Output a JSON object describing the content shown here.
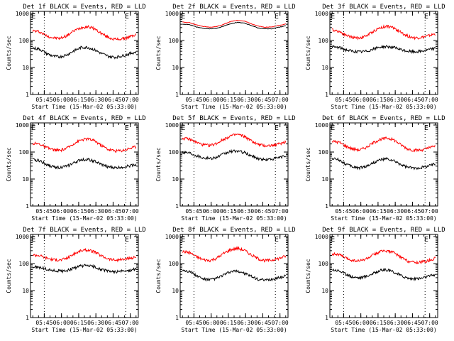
{
  "colors": {
    "events": "#000000",
    "lld": "#ff0000",
    "background": "#ffffff",
    "axes": "#000000"
  },
  "chart_data": [
    {
      "type": "line",
      "title": "Det 1f BLACK = Events, RED = LLD",
      "xlabel": "Start Time (15-Mar-02 05:33:00)",
      "ylabel": "Counts/sec",
      "xtick_labels": [
        "05:45",
        "06:00",
        "06:15",
        "06:30",
        "06:45",
        "07:00"
      ],
      "xtick_minutes": [
        12,
        27,
        42,
        57,
        72,
        87
      ],
      "xlim_minutes": [
        0,
        94
      ],
      "ytick_labels": [
        "1",
        "10",
        "100",
        "1000"
      ],
      "y_scale": "log",
      "ylim": [
        1,
        1200
      ],
      "markers": [
        {
          "label": "E",
          "x_minute": 2.6
        },
        {
          "label": "E",
          "x_minute": 84
        }
      ],
      "dotted_lines_minutes": [
        12,
        83
      ],
      "series": [
        {
          "color": "#ff0000",
          "x_minutes": [
            2,
            8,
            14,
            20,
            26,
            32,
            38,
            44,
            50,
            56,
            62,
            68,
            74,
            80,
            86,
            92
          ],
          "values": [
            230,
            210,
            150,
            125,
            120,
            155,
            230,
            300,
            330,
            270,
            180,
            130,
            110,
            115,
            135,
            165
          ]
        },
        {
          "color": "#000000",
          "x_minutes": [
            2,
            8,
            14,
            20,
            26,
            32,
            38,
            44,
            50,
            56,
            62,
            68,
            74,
            80,
            86,
            92
          ],
          "values": [
            52,
            48,
            33,
            26,
            25,
            30,
            42,
            55,
            56,
            45,
            33,
            26,
            24,
            27,
            32,
            38
          ]
        }
      ]
    },
    {
      "type": "line",
      "title": "Det 2f BLACK = Events, RED = LLD",
      "xlabel": "Start Time (15-Mar-02 05:33:00)",
      "ylabel": "Counts/sec",
      "xtick_labels": [
        "05:45",
        "06:00",
        "06:15",
        "06:30",
        "06:45",
        "07:00"
      ],
      "xtick_minutes": [
        12,
        27,
        42,
        57,
        72,
        87
      ],
      "xlim_minutes": [
        0,
        94
      ],
      "ytick_labels": [
        "1",
        "10",
        "100",
        "1000"
      ],
      "y_scale": "log",
      "ylim": [
        1,
        1200
      ],
      "markers": [
        {
          "label": "E",
          "x_minute": 2.6
        },
        {
          "label": "E",
          "x_minute": 84
        }
      ],
      "dotted_lines_minutes": [
        12,
        83
      ],
      "series": [
        {
          "color": "#ff0000",
          "x_minutes": [
            2,
            8,
            14,
            20,
            26,
            32,
            38,
            44,
            50,
            56,
            62,
            68,
            74,
            80,
            86,
            92
          ],
          "values": [
            480,
            460,
            380,
            330,
            310,
            330,
            400,
            500,
            560,
            520,
            420,
            340,
            310,
            320,
            360,
            410
          ]
        },
        {
          "color": "#000000",
          "x_minutes": [
            2,
            8,
            14,
            20,
            26,
            32,
            38,
            44,
            50,
            56,
            62,
            68,
            74,
            80,
            86,
            92
          ],
          "values": [
            400,
            390,
            320,
            280,
            270,
            285,
            340,
            420,
            470,
            440,
            360,
            290,
            270,
            275,
            310,
            350
          ]
        }
      ]
    },
    {
      "type": "line",
      "title": "Det 3f BLACK = Events, RED = LLD",
      "xlabel": "Start Time (15-Mar-02 05:33:00)",
      "ylabel": "Counts/sec",
      "xtick_labels": [
        "05:45",
        "06:00",
        "06:15",
        "06:30",
        "06:45",
        "07:00"
      ],
      "xtick_minutes": [
        12,
        27,
        42,
        57,
        72,
        87
      ],
      "xlim_minutes": [
        0,
        94
      ],
      "ytick_labels": [
        "1",
        "10",
        "100",
        "1000"
      ],
      "y_scale": "log",
      "ylim": [
        1,
        1200
      ],
      "markers": [
        {
          "label": "E",
          "x_minute": 2.6
        },
        {
          "label": "E",
          "x_minute": 84
        }
      ],
      "dotted_lines_minutes": [
        12,
        83
      ],
      "series": [
        {
          "color": "#ff0000",
          "x_minutes": [
            2,
            8,
            14,
            20,
            26,
            32,
            38,
            44,
            50,
            56,
            62,
            68,
            74,
            80,
            86,
            92
          ],
          "values": [
            250,
            220,
            160,
            130,
            125,
            150,
            220,
            300,
            340,
            290,
            200,
            145,
            125,
            130,
            150,
            175
          ]
        },
        {
          "color": "#000000",
          "x_minutes": [
            2,
            8,
            14,
            20,
            26,
            32,
            38,
            44,
            50,
            56,
            62,
            68,
            74,
            80,
            86,
            92
          ],
          "values": [
            58,
            55,
            45,
            40,
            38,
            40,
            48,
            58,
            60,
            55,
            45,
            40,
            38,
            40,
            46,
            52
          ]
        }
      ]
    },
    {
      "type": "line",
      "title": "Det 4f BLACK = Events, RED = LLD",
      "xlabel": "Start Time (15-Mar-02 05:33:00)",
      "ylabel": "Counts/sec",
      "xtick_labels": [
        "05:45",
        "06:00",
        "06:15",
        "06:30",
        "06:45",
        "07:00"
      ],
      "xtick_minutes": [
        12,
        27,
        42,
        57,
        72,
        87
      ],
      "xlim_minutes": [
        0,
        94
      ],
      "ytick_labels": [
        "1",
        "10",
        "100",
        "1000"
      ],
      "y_scale": "log",
      "ylim": [
        1,
        1200
      ],
      "markers": [
        {
          "label": "E",
          "x_minute": 2.6
        },
        {
          "label": "E",
          "x_minute": 84
        }
      ],
      "dotted_lines_minutes": [
        12,
        83
      ],
      "series": [
        {
          "color": "#ff0000",
          "x_minutes": [
            2,
            8,
            14,
            20,
            26,
            32,
            38,
            44,
            50,
            56,
            62,
            68,
            74,
            80,
            86,
            92
          ],
          "values": [
            210,
            200,
            145,
            120,
            115,
            140,
            210,
            280,
            310,
            260,
            175,
            125,
            110,
            115,
            135,
            160
          ]
        },
        {
          "color": "#000000",
          "x_minutes": [
            2,
            8,
            14,
            20,
            26,
            32,
            38,
            44,
            50,
            56,
            62,
            68,
            74,
            80,
            86,
            92
          ],
          "values": [
            52,
            48,
            35,
            28,
            27,
            30,
            40,
            52,
            54,
            45,
            34,
            28,
            26,
            28,
            31,
            35
          ]
        }
      ]
    },
    {
      "type": "line",
      "title": "Det 5f BLACK = Events, RED = LLD",
      "xlabel": "Start Time (15-Mar-02 05:33:00)",
      "ylabel": "Counts/sec",
      "xtick_labels": [
        "05:45",
        "06:00",
        "06:15",
        "06:30",
        "06:45",
        "07:00"
      ],
      "xtick_minutes": [
        12,
        27,
        42,
        57,
        72,
        87
      ],
      "xlim_minutes": [
        0,
        94
      ],
      "ytick_labels": [
        "1",
        "10",
        "100",
        "1000"
      ],
      "y_scale": "log",
      "ylim": [
        1,
        1200
      ],
      "markers": [
        {
          "label": "E",
          "x_minute": 2.6
        },
        {
          "label": "E",
          "x_minute": 84
        }
      ],
      "dotted_lines_minutes": [
        12,
        83
      ],
      "series": [
        {
          "color": "#ff0000",
          "x_minutes": [
            2,
            8,
            14,
            20,
            26,
            32,
            38,
            44,
            50,
            56,
            62,
            68,
            74,
            80,
            86,
            92
          ],
          "values": [
            330,
            300,
            230,
            185,
            175,
            210,
            300,
            400,
            450,
            380,
            260,
            190,
            170,
            175,
            200,
            240
          ]
        },
        {
          "color": "#000000",
          "x_minutes": [
            2,
            8,
            14,
            20,
            26,
            32,
            38,
            44,
            50,
            56,
            62,
            68,
            74,
            80,
            86,
            92
          ],
          "values": [
            100,
            95,
            75,
            62,
            58,
            65,
            85,
            105,
            110,
            95,
            72,
            58,
            52,
            55,
            62,
            72
          ]
        }
      ]
    },
    {
      "type": "line",
      "title": "Det 6f BLACK = Events, RED = LLD",
      "xlabel": "Start Time (15-Mar-02 05:33:00)",
      "ylabel": "Counts/sec",
      "xtick_labels": [
        "05:45",
        "06:00",
        "06:15",
        "06:30",
        "06:45",
        "07:00"
      ],
      "xtick_minutes": [
        12,
        27,
        42,
        57,
        72,
        87
      ],
      "xlim_minutes": [
        0,
        94
      ],
      "ytick_labels": [
        "1",
        "10",
        "100",
        "1000"
      ],
      "y_scale": "log",
      "ylim": [
        1,
        1200
      ],
      "markers": [
        {
          "label": "E",
          "x_minute": 2.6
        },
        {
          "label": "E",
          "x_minute": 84
        }
      ],
      "dotted_lines_minutes": [
        12,
        83
      ],
      "series": [
        {
          "color": "#ff0000",
          "x_minutes": [
            2,
            8,
            14,
            20,
            26,
            32,
            38,
            44,
            50,
            56,
            62,
            68,
            74,
            80,
            86,
            92
          ],
          "values": [
            250,
            230,
            165,
            130,
            120,
            150,
            220,
            300,
            330,
            280,
            185,
            130,
            115,
            120,
            140,
            170
          ]
        },
        {
          "color": "#000000",
          "x_minutes": [
            2,
            8,
            14,
            20,
            26,
            32,
            38,
            44,
            50,
            56,
            62,
            68,
            74,
            80,
            86,
            92
          ],
          "values": [
            58,
            52,
            36,
            28,
            26,
            30,
            40,
            52,
            55,
            46,
            34,
            27,
            25,
            27,
            31,
            37
          ]
        }
      ]
    },
    {
      "type": "line",
      "title": "Det 7f BLACK = Events, RED = LLD",
      "xlabel": "Start Time (15-Mar-02 05:33:00)",
      "ylabel": "Counts/sec",
      "xtick_labels": [
        "05:45",
        "06:00",
        "06:15",
        "06:30",
        "06:45",
        "07:00"
      ],
      "xtick_minutes": [
        12,
        27,
        42,
        57,
        72,
        87
      ],
      "xlim_minutes": [
        0,
        94
      ],
      "ytick_labels": [
        "1",
        "10",
        "100",
        "1000"
      ],
      "y_scale": "log",
      "ylim": [
        1,
        1200
      ],
      "markers": [
        {
          "label": "E",
          "x_minute": 2.6
        },
        {
          "label": "E",
          "x_minute": 84
        }
      ],
      "dotted_lines_minutes": [
        12,
        83
      ],
      "series": [
        {
          "color": "#ff0000",
          "x_minutes": [
            2,
            8,
            14,
            20,
            26,
            32,
            38,
            44,
            50,
            56,
            62,
            68,
            74,
            80,
            86,
            92
          ],
          "values": [
            210,
            200,
            160,
            140,
            135,
            160,
            230,
            300,
            320,
            270,
            190,
            150,
            135,
            140,
            155,
            175
          ]
        },
        {
          "color": "#000000",
          "x_minutes": [
            2,
            8,
            14,
            20,
            26,
            32,
            38,
            44,
            50,
            56,
            62,
            68,
            74,
            80,
            86,
            92
          ],
          "values": [
            75,
            72,
            62,
            55,
            53,
            56,
            68,
            82,
            85,
            75,
            60,
            52,
            50,
            52,
            56,
            62
          ]
        }
      ]
    },
    {
      "type": "line",
      "title": "Det 8f BLACK = Events, RED = LLD",
      "xlabel": "Start Time (15-Mar-02 05:33:00)",
      "ylabel": "Counts/sec",
      "xtick_labels": [
        "05:45",
        "06:00",
        "06:15",
        "06:30",
        "06:45",
        "07:00"
      ],
      "xtick_minutes": [
        12,
        27,
        42,
        57,
        72,
        87
      ],
      "xlim_minutes": [
        0,
        94
      ],
      "ytick_labels": [
        "1",
        "10",
        "100",
        "1000"
      ],
      "y_scale": "log",
      "ylim": [
        1,
        1200
      ],
      "markers": [
        {
          "label": "E",
          "x_minute": 2.6
        },
        {
          "label": "E",
          "x_minute": 84
        }
      ],
      "dotted_lines_minutes": [
        12,
        83
      ],
      "series": [
        {
          "color": "#ff0000",
          "x_minutes": [
            2,
            8,
            14,
            20,
            26,
            32,
            38,
            44,
            50,
            56,
            62,
            68,
            74,
            80,
            86,
            92
          ],
          "values": [
            280,
            260,
            180,
            140,
            130,
            160,
            240,
            330,
            370,
            310,
            210,
            150,
            130,
            135,
            155,
            190
          ]
        },
        {
          "color": "#000000",
          "x_minutes": [
            2,
            8,
            14,
            20,
            26,
            32,
            38,
            44,
            50,
            56,
            62,
            68,
            74,
            80,
            86,
            92
          ],
          "values": [
            58,
            52,
            36,
            27,
            25,
            29,
            38,
            50,
            53,
            44,
            33,
            26,
            24,
            26,
            30,
            36
          ]
        }
      ]
    },
    {
      "type": "line",
      "title": "Det 9f BLACK = Events, RED = LLD",
      "xlabel": "Start Time (15-Mar-02 05:33:00)",
      "ylabel": "Counts/sec",
      "xtick_labels": [
        "05:45",
        "06:00",
        "06:15",
        "06:30",
        "06:45",
        "07:00"
      ],
      "xtick_minutes": [
        12,
        27,
        42,
        57,
        72,
        87
      ],
      "xlim_minutes": [
        0,
        94
      ],
      "ytick_labels": [
        "1",
        "10",
        "100",
        "1000"
      ],
      "y_scale": "log",
      "ylim": [
        1,
        1200
      ],
      "markers": [
        {
          "label": "E",
          "x_minute": 2.6
        },
        {
          "label": "E",
          "x_minute": 84
        }
      ],
      "dotted_lines_minutes": [
        12,
        83
      ],
      "series": [
        {
          "color": "#ff0000",
          "x_minutes": [
            2,
            8,
            14,
            20,
            26,
            32,
            38,
            44,
            50,
            56,
            62,
            68,
            74,
            80,
            86,
            92
          ],
          "values": [
            230,
            215,
            160,
            130,
            125,
            150,
            210,
            280,
            300,
            250,
            170,
            125,
            110,
            115,
            130,
            160
          ]
        },
        {
          "color": "#000000",
          "x_minutes": [
            2,
            8,
            14,
            20,
            26,
            32,
            38,
            44,
            50,
            56,
            62,
            68,
            74,
            80,
            86,
            92
          ],
          "values": [
            60,
            55,
            40,
            32,
            30,
            34,
            44,
            56,
            58,
            48,
            36,
            29,
            27,
            29,
            34,
            40
          ]
        }
      ]
    }
  ]
}
